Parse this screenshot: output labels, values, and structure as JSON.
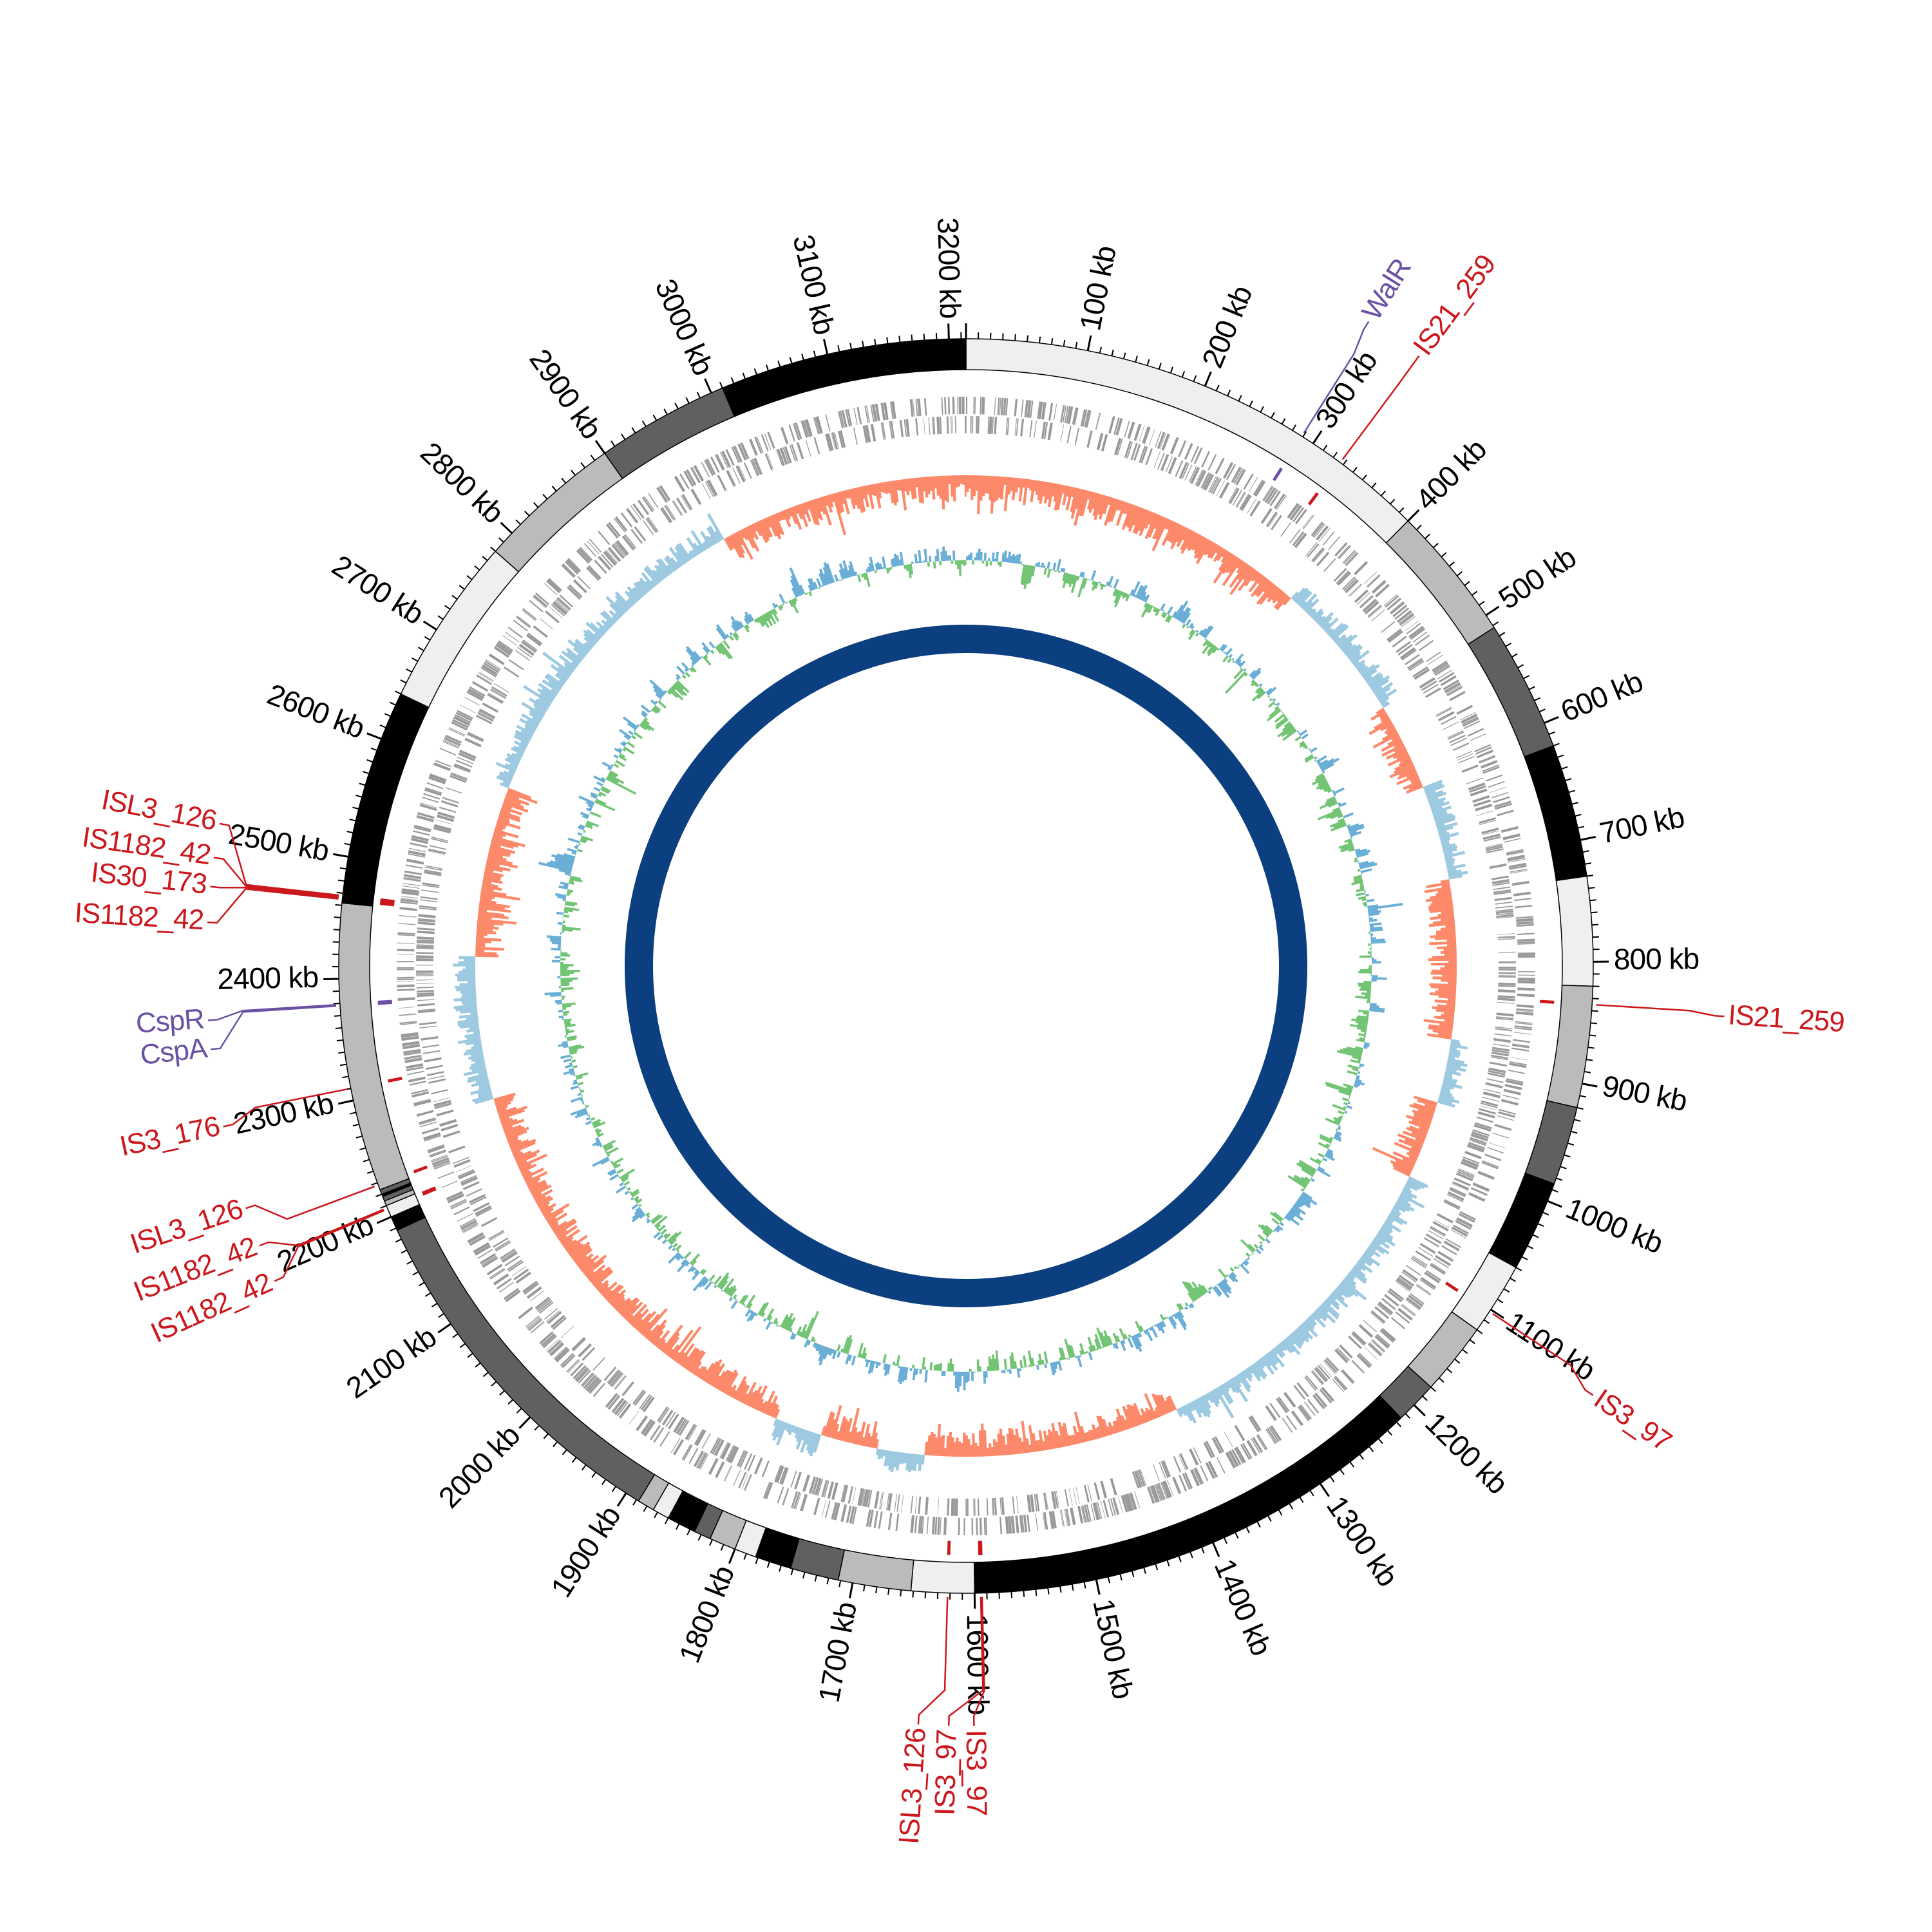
{
  "chart_data": {
    "type": "circular-genome",
    "title": "",
    "genome_length_kb": 3214,
    "tick_unit": "kb",
    "major_tick_every_kb": 100,
    "minor_tick_every_kb": 10,
    "ticks": [
      {
        "pos": 100,
        "label": "100 kb"
      },
      {
        "pos": 200,
        "label": "200 kb"
      },
      {
        "pos": 300,
        "label": "300 kb"
      },
      {
        "pos": 400,
        "label": "400 kb"
      },
      {
        "pos": 500,
        "label": "500 kb"
      },
      {
        "pos": 600,
        "label": "600 kb"
      },
      {
        "pos": 700,
        "label": "700 kb"
      },
      {
        "pos": 800,
        "label": "800 kb"
      },
      {
        "pos": 900,
        "label": "900 kb"
      },
      {
        "pos": 1000,
        "label": "1000 kb"
      },
      {
        "pos": 1100,
        "label": "1100 kb"
      },
      {
        "pos": 1200,
        "label": "1200 kb"
      },
      {
        "pos": 1300,
        "label": "1300 kb"
      },
      {
        "pos": 1400,
        "label": "1400 kb"
      },
      {
        "pos": 1500,
        "label": "1500 kb"
      },
      {
        "pos": 1600,
        "label": "1600 kb"
      },
      {
        "pos": 1700,
        "label": "1700 kb"
      },
      {
        "pos": 1800,
        "label": "1800 kb"
      },
      {
        "pos": 1900,
        "label": "1900 kb"
      },
      {
        "pos": 2000,
        "label": "2000 kb"
      },
      {
        "pos": 2100,
        "label": "2100 kb"
      },
      {
        "pos": 2200,
        "label": "2200 kb"
      },
      {
        "pos": 2300,
        "label": "2300 kb"
      },
      {
        "pos": 2400,
        "label": "2400 kb"
      },
      {
        "pos": 2500,
        "label": "2500 kb"
      },
      {
        "pos": 2600,
        "label": "2600 kb"
      },
      {
        "pos": 2700,
        "label": "2700 kb"
      },
      {
        "pos": 2800,
        "label": "2800 kb"
      },
      {
        "pos": 2900,
        "label": "2900 kb"
      },
      {
        "pos": 3000,
        "label": "3000 kb"
      },
      {
        "pos": 3100,
        "label": "3100 kb"
      },
      {
        "pos": 3200,
        "label": "3200 kb"
      }
    ],
    "band_colors": {
      "light": "#efefef",
      "mid": "#bbbbbb",
      "dark": "#606060",
      "black": "#000000"
    },
    "bands": [
      {
        "start": 0,
        "end": 400,
        "shade": "light"
      },
      {
        "start": 400,
        "end": 512,
        "shade": "mid"
      },
      {
        "start": 512,
        "end": 620,
        "shade": "dark"
      },
      {
        "start": 620,
        "end": 730,
        "shade": "black"
      },
      {
        "start": 730,
        "end": 820,
        "shade": "light"
      },
      {
        "start": 820,
        "end": 920,
        "shade": "mid"
      },
      {
        "start": 920,
        "end": 985,
        "shade": "dark"
      },
      {
        "start": 985,
        "end": 1060,
        "shade": "black"
      },
      {
        "start": 1060,
        "end": 1120,
        "shade": "light"
      },
      {
        "start": 1120,
        "end": 1180,
        "shade": "mid"
      },
      {
        "start": 1180,
        "end": 1215,
        "shade": "dark"
      },
      {
        "start": 1215,
        "end": 1600,
        "shade": "black"
      },
      {
        "start": 1600,
        "end": 1652,
        "shade": "light"
      },
      {
        "start": 1652,
        "end": 1712,
        "shade": "mid"
      },
      {
        "start": 1712,
        "end": 1752,
        "shade": "dark"
      },
      {
        "start": 1752,
        "end": 1782,
        "shade": "black"
      },
      {
        "start": 1782,
        "end": 1800,
        "shade": "light"
      },
      {
        "start": 1800,
        "end": 1822,
        "shade": "mid"
      },
      {
        "start": 1822,
        "end": 1836,
        "shade": "dark"
      },
      {
        "start": 1836,
        "end": 1860,
        "shade": "black"
      },
      {
        "start": 1860,
        "end": 1874,
        "shade": "light"
      },
      {
        "start": 1874,
        "end": 1888,
        "shade": "mid"
      },
      {
        "start": 1888,
        "end": 2188,
        "shade": "dark"
      },
      {
        "start": 2188,
        "end": 2200,
        "shade": "black"
      },
      {
        "start": 2200,
        "end": 2210,
        "shade": "light"
      },
      {
        "start": 2210,
        "end": 2214,
        "shade": "mid"
      },
      {
        "start": 2214,
        "end": 2218,
        "shade": "dark"
      },
      {
        "start": 2218,
        "end": 2220,
        "shade": "black"
      },
      {
        "start": 2220,
        "end": 2224,
        "shade": "dark"
      },
      {
        "start": 2224,
        "end": 2462,
        "shade": "mid"
      },
      {
        "start": 2462,
        "end": 2640,
        "shade": "black"
      },
      {
        "start": 2640,
        "end": 2780,
        "shade": "light"
      },
      {
        "start": 2780,
        "end": 2900,
        "shade": "mid"
      },
      {
        "start": 2900,
        "end": 3010,
        "shade": "dark"
      },
      {
        "start": 3010,
        "end": 3214,
        "shade": "black"
      }
    ],
    "annotations": [
      {
        "label": "WalR",
        "pos": 289,
        "color": "#6a51a3"
      },
      {
        "label": "IS21_259",
        "pos": 327,
        "color": "#cb181d"
      },
      {
        "label": "IS21_259",
        "pos": 835,
        "color": "#cb181d"
      },
      {
        "label": "IS3_97",
        "pos": 1102,
        "color": "#cb181d"
      },
      {
        "label": "IS3_97",
        "pos": 1594,
        "color": "#cb181d"
      },
      {
        "label": "IS3_97",
        "pos": 1595,
        "color": "#cb181d"
      },
      {
        "label": "ISL3_126",
        "pos": 1622,
        "color": "#cb181d"
      },
      {
        "label": "IS1182_42",
        "pos": 2207,
        "color": "#cb181d"
      },
      {
        "label": "IS1182_42",
        "pos": 2208,
        "color": "#cb181d"
      },
      {
        "label": "ISL3_126",
        "pos": 2228,
        "color": "#cb181d"
      },
      {
        "label": "IS3_176",
        "pos": 2310,
        "color": "#cb181d"
      },
      {
        "label": "CspA",
        "pos": 2378,
        "color": "#6a51a3"
      },
      {
        "label": "CspR",
        "pos": 2379,
        "color": "#6a51a3"
      },
      {
        "label": "IS1182_42",
        "pos": 2465,
        "color": "#cb181d"
      },
      {
        "label": "IS30_173",
        "pos": 2466,
        "color": "#cb181d"
      },
      {
        "label": "IS1182_42",
        "pos": 2467,
        "color": "#cb181d"
      },
      {
        "label": "ISL3_126",
        "pos": 2468,
        "color": "#cb181d"
      }
    ],
    "tracks": {
      "genes": {
        "color": "#999999"
      },
      "gc_skew": {
        "positive_color": "#fc8a6a",
        "negative_color": "#9ecae1",
        "sign_segments": [
          {
            "start": 0,
            "end": 370,
            "sign": 1
          },
          {
            "start": 370,
            "end": 520,
            "sign": -1
          },
          {
            "start": 520,
            "end": 612,
            "sign": 1
          },
          {
            "start": 612,
            "end": 711,
            "sign": -1
          },
          {
            "start": 711,
            "end": 880,
            "sign": 1
          },
          {
            "start": 880,
            "end": 946,
            "sign": -1
          },
          {
            "start": 946,
            "end": 1030,
            "sign": 1
          },
          {
            "start": 1030,
            "end": 1378,
            "sign": -1
          },
          {
            "start": 1378,
            "end": 1650,
            "sign": 1
          },
          {
            "start": 1650,
            "end": 1700,
            "sign": -1
          },
          {
            "start": 1700,
            "end": 1760,
            "sign": 1
          },
          {
            "start": 1760,
            "end": 1810,
            "sign": -1
          },
          {
            "start": 1810,
            "end": 2270,
            "sign": 1
          },
          {
            "start": 2270,
            "end": 2420,
            "sign": -1
          },
          {
            "start": 2420,
            "end": 2600,
            "sign": 1
          },
          {
            "start": 2600,
            "end": 2950,
            "sign": -1
          },
          {
            "start": 2950,
            "end": 3214,
            "sign": 1
          }
        ]
      },
      "gc_content": {
        "above_color": "#6baed6",
        "below_color": "#74c476"
      },
      "inner_ring": {
        "color": "#0b3f7f"
      }
    }
  }
}
